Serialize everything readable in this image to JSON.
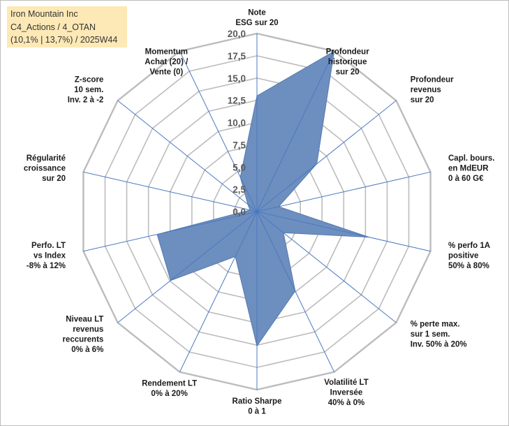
{
  "info": {
    "line1": "Iron Mountain Inc",
    "line2": "C4_Actions / 4_OTAN",
    "line3": "(10,1% | 13,7%) / 2025W44"
  },
  "chart_data": {
    "type": "radar",
    "title": "Iron Mountain Inc",
    "range": [
      0,
      20
    ],
    "tick_step": 2.5,
    "ticks": [
      "0,0",
      "2,5",
      "5,0",
      "7,5",
      "10,0",
      "12,5",
      "15,0",
      "17,5",
      "20,0"
    ],
    "axes": [
      {
        "label": [
          "Note",
          "ESG sur 20"
        ],
        "value": 13
      },
      {
        "label": [
          "Profondeur",
          "historique",
          "sur 20"
        ],
        "value": 20
      },
      {
        "label": [
          "Profondeur",
          "revenus",
          "sur 20"
        ],
        "value": 8.6
      },
      {
        "label": [
          "Capl. bours.",
          "en MdEUR",
          "0 à 60 G€"
        ],
        "value": 2.5
      },
      {
        "label": [
          "% perfo 1A",
          "positive",
          "50% à 80%"
        ],
        "value": 12.9
      },
      {
        "label": [
          "% perte max.",
          "sur 1 sem.",
          "Inv. 50% à 20%"
        ],
        "value": 3.8
      },
      {
        "label": [
          "Volatilité LT",
          "Inversée",
          "40% à 0%"
        ],
        "value": 9.9
      },
      {
        "label": [
          "Ratio Sharpe",
          "0 à 1"
        ],
        "value": 15.1
      },
      {
        "label": [
          "Rendement LT",
          "0% à 20%"
        ],
        "value": 5.6
      },
      {
        "label": [
          "Niveau LT",
          "revenus",
          "reccurents",
          "0% à 6%"
        ],
        "value": 12.4
      },
      {
        "label": [
          "Perfo. LT",
          "vs Index",
          "-8% à 12%"
        ],
        "value": 11.5
      },
      {
        "label": [
          "Régularité",
          "croissance",
          "sur 20"
        ],
        "value": 0.8
      },
      {
        "label": [
          "Z-score",
          "10 sem.",
          "Inv. 2 à -2"
        ],
        "value": 1.3
      },
      {
        "label": [
          "Momentum",
          "Achat (20) /",
          "Vente (0)"
        ],
        "value": 4.3
      }
    ],
    "colors": {
      "fill": "#6d8fbf",
      "stroke": "#5679ae",
      "spoke": "#4a78c0",
      "grid": "#bcbcbc"
    }
  }
}
